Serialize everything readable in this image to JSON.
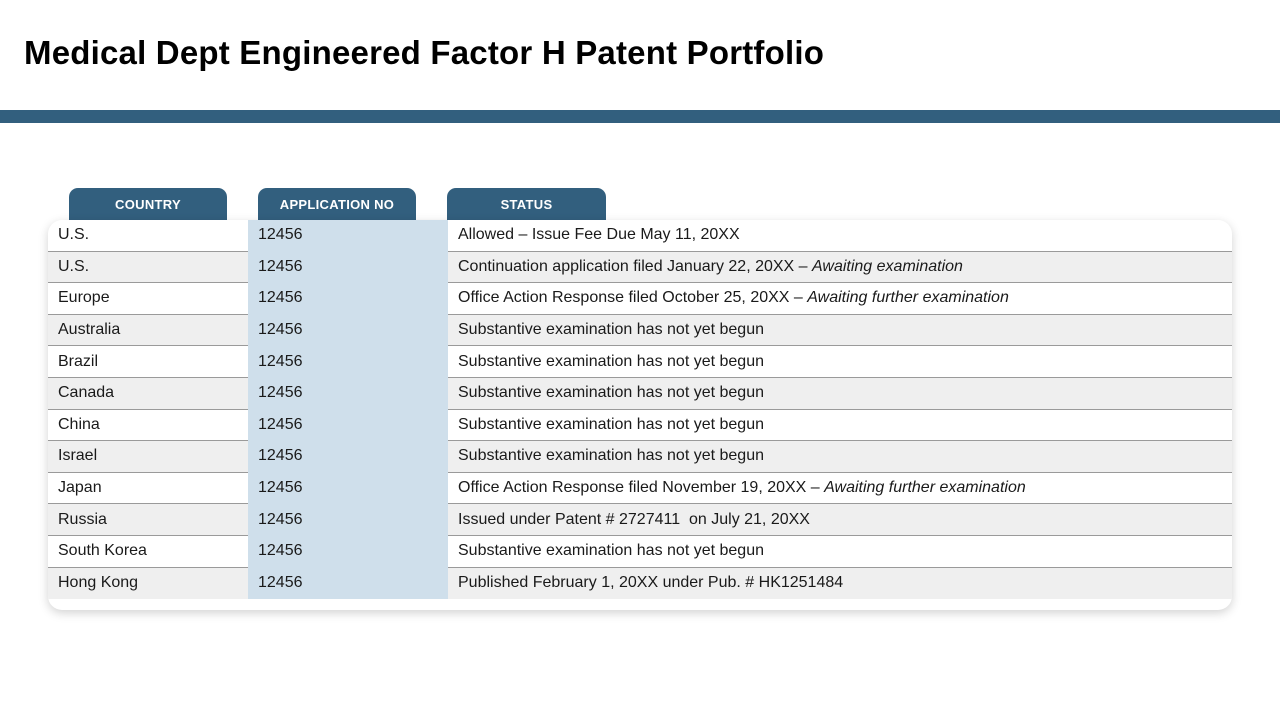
{
  "page": {
    "title": "Medical Dept Engineered Factor H Patent Portfolio"
  },
  "colors": {
    "accent": "#325f7e",
    "appno_band": "#cfdfeb",
    "alt_row": "#efefef"
  },
  "table": {
    "headers": {
      "country": "COUNTRY",
      "application_no": "APPLICATION NO",
      "status": "STATUS"
    },
    "rows": [
      {
        "country": "U.S.",
        "application_no": "12456",
        "status": "Allowed – Issue Fee Due May 11, 20XX",
        "note": ""
      },
      {
        "country": "U.S.",
        "application_no": "12456",
        "status": "Continuation application filed January 22, 20XX – ",
        "note": "Awaiting examination"
      },
      {
        "country": "Europe",
        "application_no": "12456",
        "status": "Office Action Response filed October 25, 20XX – ",
        "note": "Awaiting further examination"
      },
      {
        "country": "Australia",
        "application_no": "12456",
        "status": "Substantive examination has not yet begun",
        "note": ""
      },
      {
        "country": "Brazil",
        "application_no": "12456",
        "status": "Substantive examination has not yet begun",
        "note": ""
      },
      {
        "country": "Canada",
        "application_no": "12456",
        "status": "Substantive examination has not yet begun",
        "note": ""
      },
      {
        "country": "China",
        "application_no": "12456",
        "status": "Substantive examination has not yet begun",
        "note": ""
      },
      {
        "country": "Israel",
        "application_no": "12456",
        "status": "Substantive examination has not yet begun",
        "note": ""
      },
      {
        "country": "Japan",
        "application_no": "12456",
        "status": "Office Action Response filed November 19, 20XX – ",
        "note": "Awaiting further examination"
      },
      {
        "country": "Russia",
        "application_no": "12456",
        "status": "Issued under Patent # 2727411  on July 21, 20XX",
        "note": ""
      },
      {
        "country": "South Korea",
        "application_no": "12456",
        "status": "Substantive examination has not yet begun",
        "note": ""
      },
      {
        "country": "Hong Kong",
        "application_no": "12456",
        "status": "Published February 1, 20XX under Pub. # HK1251484",
        "note": ""
      }
    ]
  }
}
